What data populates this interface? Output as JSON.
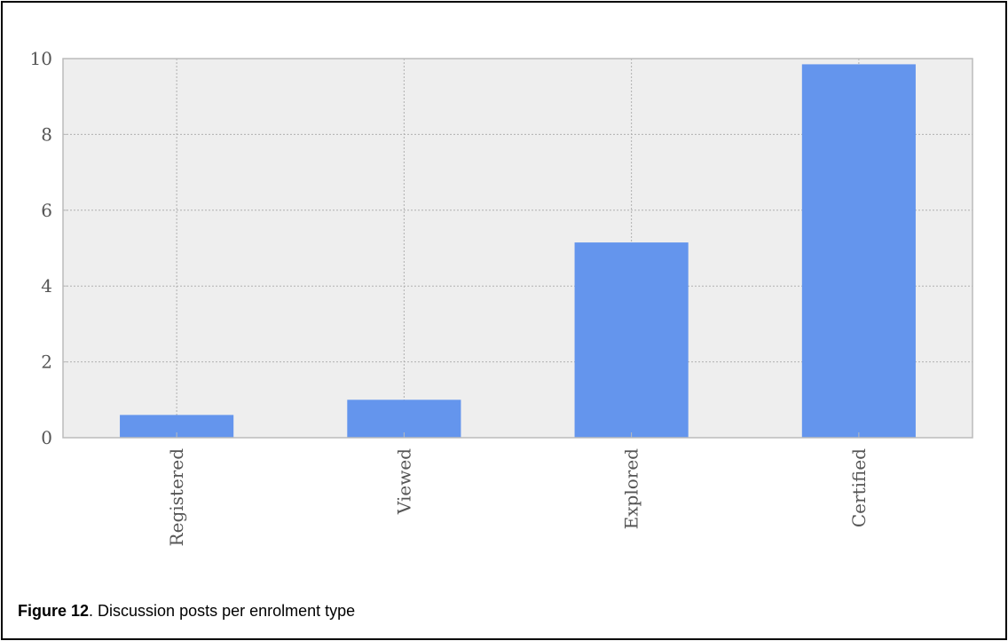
{
  "caption": {
    "label": "Figure 12",
    "text": ". Discussion posts per enrolment type"
  },
  "colors": {
    "bar": "#6495ED",
    "plot_background": "#EEEEEE",
    "grid": "#B0B0B0",
    "axis": "#BBBBBB"
  },
  "chart_data": {
    "type": "bar",
    "categories": [
      "Registered",
      "Viewed",
      "Explored",
      "Certified"
    ],
    "values": [
      0.6,
      1.0,
      5.15,
      9.85
    ],
    "ylim": [
      0,
      10
    ],
    "yticks": [
      0,
      2,
      4,
      6,
      8,
      10
    ],
    "grid": true,
    "tick_label_rotation": "vertical"
  }
}
